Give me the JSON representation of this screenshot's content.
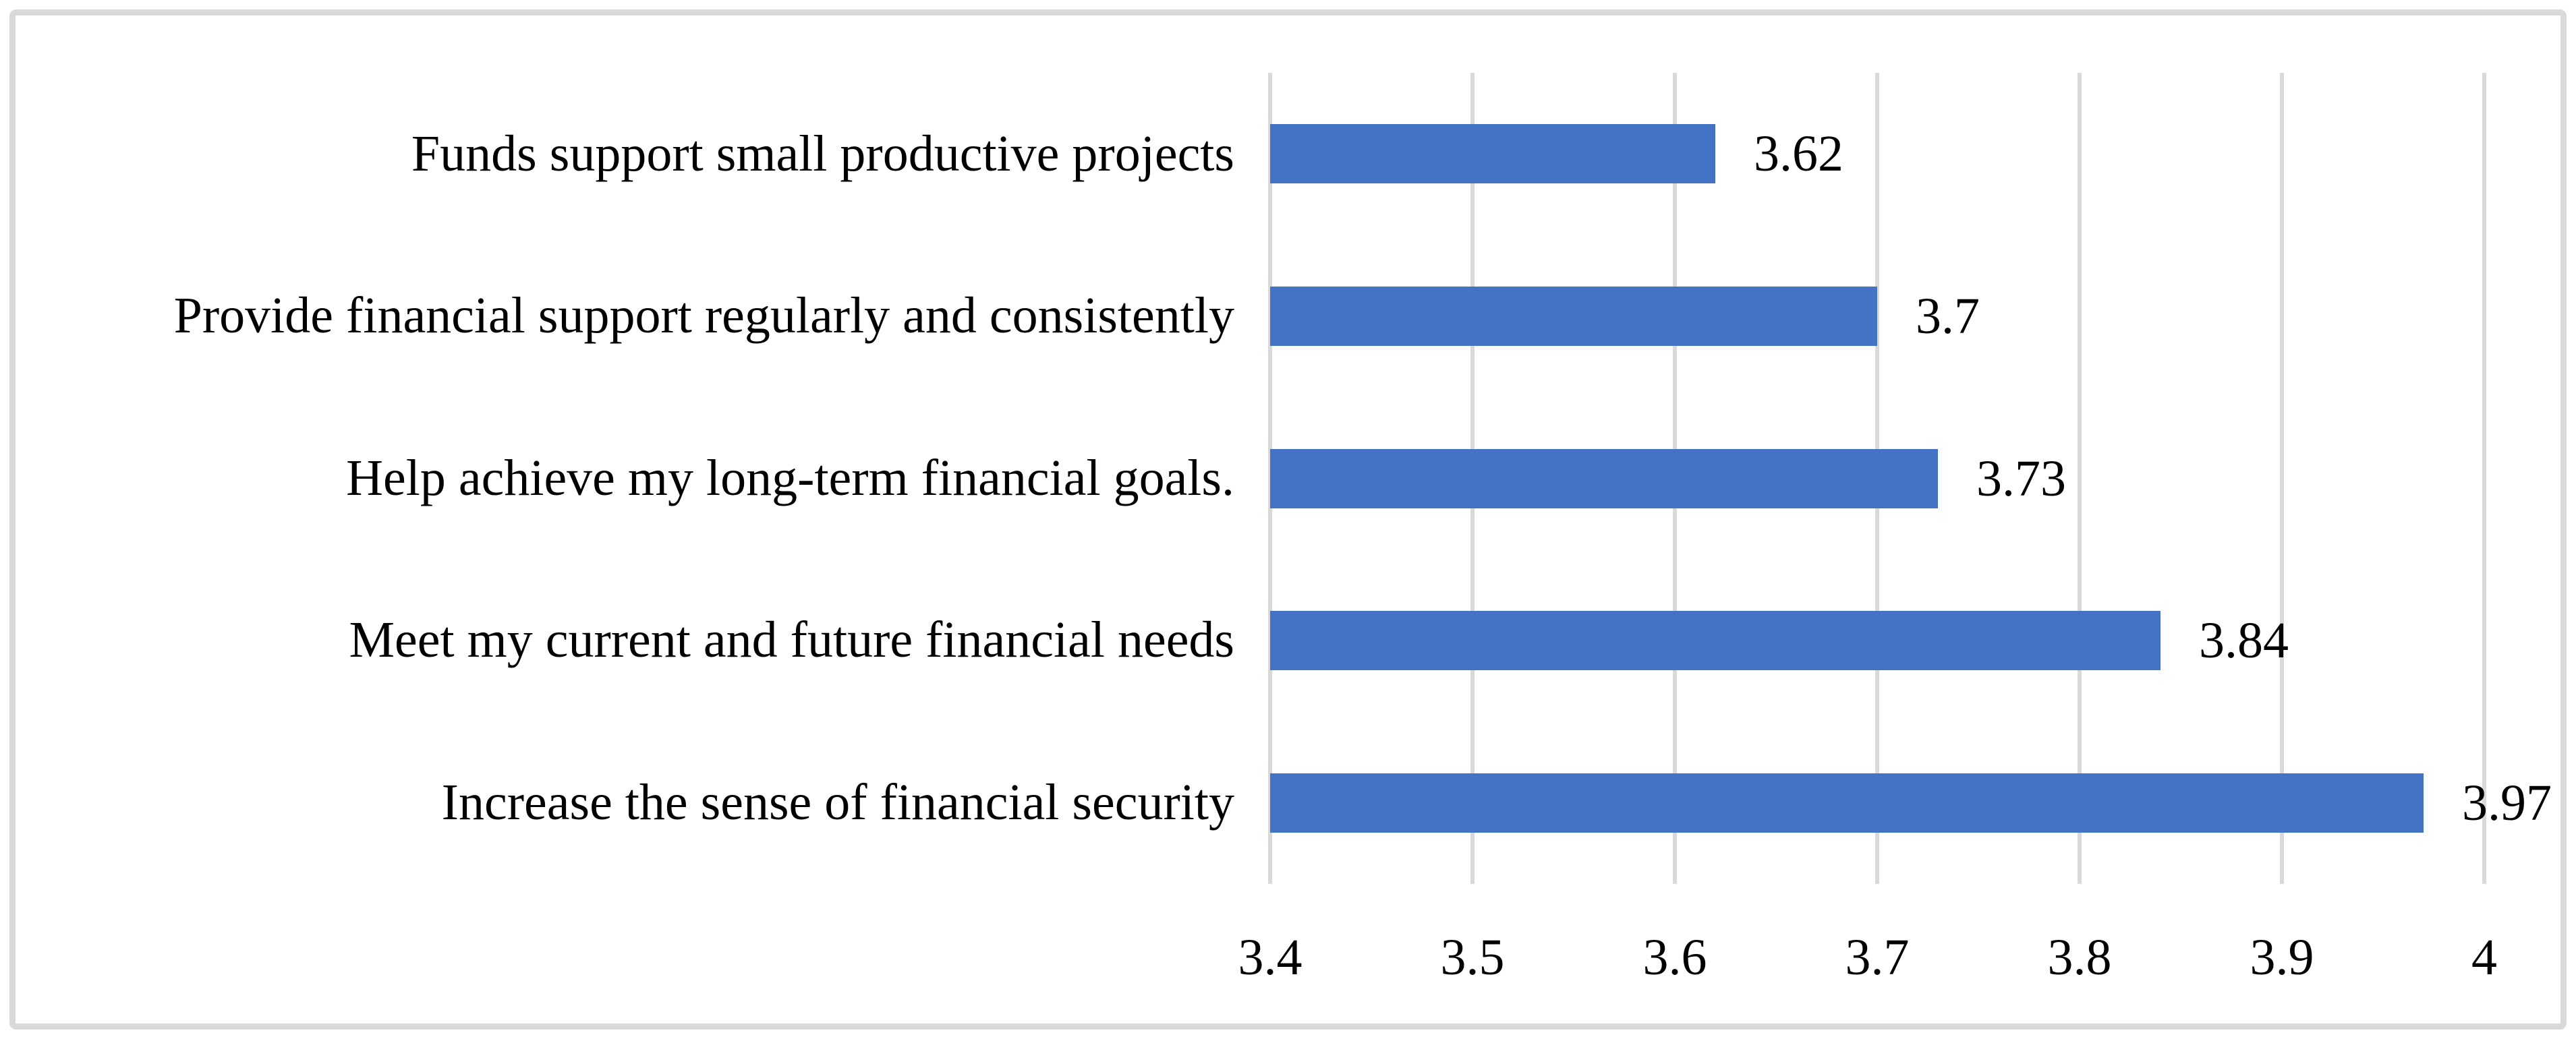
{
  "chart_data": {
    "type": "bar",
    "orientation": "horizontal",
    "title": "",
    "xlabel": "",
    "ylabel": "",
    "categories": [
      "Funds support small productive projects",
      "Provide financial support regularly and consistently",
      "Help achieve my long-term financial goals.",
      "Meet my current and future financial needs",
      "Increase the sense of financial security"
    ],
    "values": [
      3.62,
      3.7,
      3.73,
      3.84,
      3.97
    ],
    "value_labels": [
      "3.62",
      "3.7",
      "3.73",
      "3.84",
      "3.97"
    ],
    "xlim": [
      3.4,
      4.0
    ],
    "x_ticks": [
      3.4,
      3.5,
      3.6,
      3.7,
      3.8,
      3.9,
      4.0
    ],
    "x_tick_labels": [
      "3.4",
      "3.5",
      "3.6",
      "3.7",
      "3.8",
      "3.9",
      "4"
    ],
    "grid": true,
    "gridline_orientation": "vertical",
    "legend": false,
    "data_labels": true,
    "colors": {
      "bar": "#4472C4",
      "gridline": "#D9D9D9",
      "frame_border": "#D9D9D9",
      "text": "#000000",
      "background": "#FFFFFF"
    }
  }
}
